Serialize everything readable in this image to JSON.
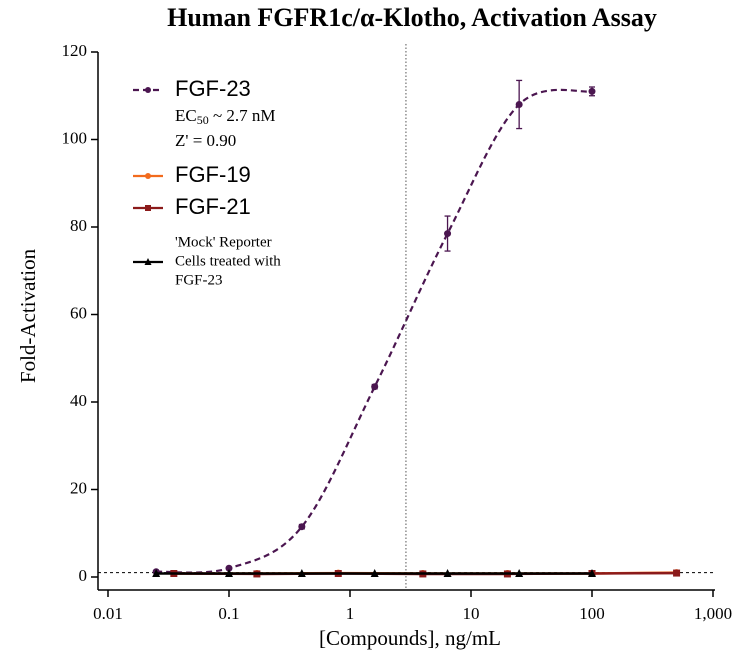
{
  "chart_data": {
    "type": "line",
    "title": "Human FGFR1c/α-Klotho, Activation Assay",
    "x_label": "[Compounds], ng/mL",
    "y_label": "Fold-Activation",
    "x_scale": "log",
    "xlim": [
      0.01,
      1000
    ],
    "xticks": [
      0.01,
      0.1,
      1,
      10,
      100,
      {
        "value": 1000,
        "label": "1,000"
      }
    ],
    "ylim": [
      0,
      120
    ],
    "yticks": [
      0,
      20,
      40,
      60,
      80,
      100,
      120
    ],
    "reference_lines": {
      "x": 2.9,
      "y": 1
    },
    "annotations": {
      "ec": "EC",
      "ec_sub": "50",
      "ec_rest": " ~ 2.7 nM",
      "z": "Z' = 0.90"
    },
    "series": [
      {
        "name": "FGF-23",
        "color": "#4b1650",
        "marker": "circle",
        "smooth": true,
        "dashed": true,
        "x": [
          0.025,
          0.1,
          0.4,
          1.6,
          6.4,
          25,
          100
        ],
        "values": [
          1.2,
          2,
          11.5,
          43.5,
          78.5,
          108,
          111
        ],
        "errors": [
          0,
          0,
          0.5,
          0.5,
          4,
          5.5,
          1
        ]
      },
      {
        "name": "FGF-19",
        "color": "#f26b1d",
        "marker": "circle",
        "x": [
          0.035,
          0.17,
          0.8,
          4,
          20,
          100,
          500
        ],
        "values": [
          0.8,
          0.8,
          0.9,
          0.8,
          0.8,
          0.8,
          1
        ]
      },
      {
        "name": "FGF-21",
        "color": "#8b1a1a",
        "marker": "square",
        "x": [
          0.035,
          0.17,
          0.8,
          4,
          20,
          100,
          500
        ],
        "values": [
          0.8,
          0.7,
          0.8,
          0.7,
          0.7,
          0.8,
          0.9
        ]
      },
      {
        "name": [
          "'Mock' Reporter",
          "Cells treated with",
          "FGF-23"
        ],
        "color": "#000000",
        "marker": "triangle",
        "x": [
          0.025,
          0.1,
          0.4,
          1.6,
          6.4,
          25,
          100
        ],
        "values": [
          0.8,
          0.8,
          0.8,
          0.8,
          0.8,
          0.8,
          0.8
        ]
      }
    ]
  }
}
